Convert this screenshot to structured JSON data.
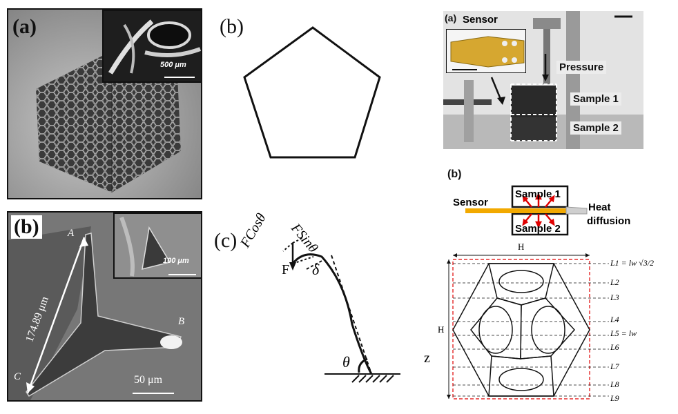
{
  "left_column": {
    "panel_a_label": "(a)",
    "panel_a_inset_scale": "500 μm",
    "panel_b_label": "(b)",
    "panel_b_point_a": "A",
    "panel_b_point_b": "B",
    "panel_b_point_c": "C",
    "panel_b_length": "174.89 μm",
    "panel_b_scale": "50 μm",
    "panel_b_inset_scale": "100 μm"
  },
  "middle_column": {
    "panel_b_label": "(b)",
    "panel_c_label": "(c)",
    "force_cos": "FCosθ",
    "force_sin": "FSinθ",
    "force_label": "F",
    "delta_label": "δ",
    "theta_label": "θ",
    "z_label": "z"
  },
  "right_column": {
    "panel_a_label": "(a)",
    "sensor_label": "Sensor",
    "pressure_label": "Pressure",
    "sample1_label": "Sample 1",
    "sample2_label": "Sample 2",
    "panel_b_label": "(b)",
    "diagram_sensor": "Sensor",
    "diagram_sample1": "Sample 1",
    "diagram_sample2": "Sample 2",
    "heat_label_1": "Heat",
    "heat_label_2": "diffusion",
    "width_label": "H",
    "height_label": "H",
    "levels": [
      "L1 = lw √3/2",
      "L2",
      "L3",
      "L4",
      "L5 = lw",
      "L6",
      "L7",
      "L8",
      "L9"
    ]
  }
}
